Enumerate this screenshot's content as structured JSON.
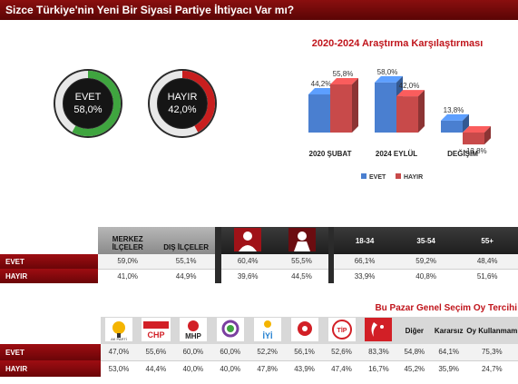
{
  "title": "Sizce Türkiye'nin Yeni Bir Siyasi Partiye İhtiyacı Var mı?",
  "donuts": [
    {
      "label": "EVET",
      "value_text": "58,0%",
      "value": 58.0,
      "color": "#3fa53f"
    },
    {
      "label": "HAYIR",
      "value_text": "42,0%",
      "value": 42.0,
      "color": "#c81e1e"
    }
  ],
  "chart_data": {
    "type": "bar",
    "title": "2020-2024 Araştırma Karşılaştırması",
    "categories": [
      "2020 ŞUBAT",
      "2024 EYLÜL",
      "DEĞİŞİM"
    ],
    "series": [
      {
        "name": "EVET",
        "color": "#4a7fd0",
        "values": [
          44.2,
          58.0,
          13.8
        ],
        "labels": [
          "44,2%",
          "58,0%",
          "13,8%"
        ]
      },
      {
        "name": "HAYIR",
        "color": "#c84a4a",
        "values": [
          55.8,
          42.0,
          -13.8
        ],
        "labels": [
          "55,8%",
          "42,0%",
          "-13,8%"
        ]
      }
    ],
    "ylim": [
      -20,
      60
    ],
    "legend": "bottom"
  },
  "table1": {
    "headers": [
      "MERKEZ İLÇELER",
      "DIŞ İLÇELER",
      "",
      "",
      "18-34",
      "35-54",
      "55+"
    ],
    "rows": [
      {
        "label": "EVET",
        "values": [
          "59,0%",
          "55,1%",
          "60,4%",
          "55,5%",
          "66,1%",
          "59,2%",
          "48,4%"
        ]
      },
      {
        "label": "HAYIR",
        "values": [
          "41,0%",
          "44,9%",
          "39,6%",
          "44,5%",
          "33,9%",
          "40,8%",
          "51,6%"
        ]
      }
    ]
  },
  "table2": {
    "title": "Bu Pazar Genel Seçim Oy Tercihi",
    "logos": [
      "AK PARTİ",
      "CHP",
      "MHP",
      "DEM",
      "İYİ",
      "SAADET",
      "TİP",
      "YENİDEN REFAH"
    ],
    "text_headers": [
      "Diğer",
      "Kararsız",
      "Oy Kullanmam"
    ],
    "rows": [
      {
        "label": "EVET",
        "values": [
          "47,0%",
          "55,6%",
          "60,0%",
          "60,0%",
          "52,2%",
          "56,1%",
          "52,6%",
          "83,3%",
          "54,8%",
          "64,1%",
          "75,3%"
        ]
      },
      {
        "label": "HAYIR",
        "values": [
          "53,0%",
          "44,4%",
          "40,0%",
          "40,0%",
          "47,8%",
          "43,9%",
          "47,4%",
          "16,7%",
          "45,2%",
          "35,9%",
          "24,7%"
        ]
      }
    ]
  }
}
